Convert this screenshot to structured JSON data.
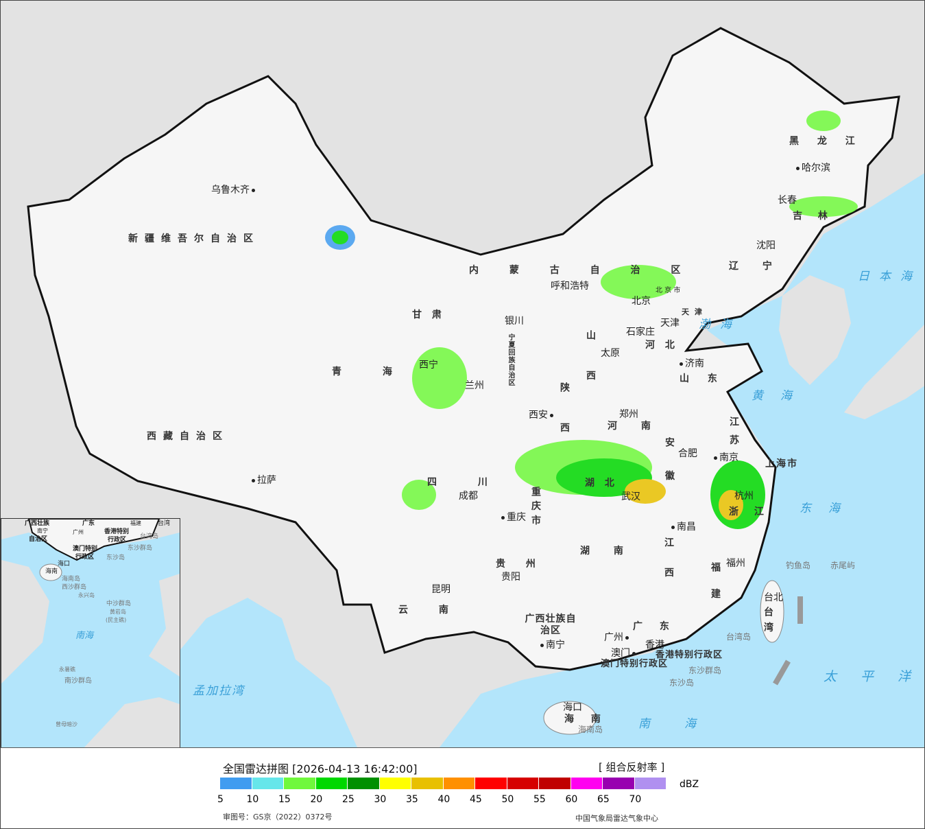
{
  "map": {
    "provinces": [
      "新疆维吾尔自治区",
      "西藏自治区",
      "青 海",
      "甘 肃",
      "内 蒙 古 自 治 区",
      "宁夏回族自治区",
      "陕 西",
      "山 西",
      "河 北",
      "北 京 市",
      "天 津",
      "山 东",
      "河 南",
      "江 苏",
      "安 徽",
      "上海市",
      "浙 江",
      "湖 北",
      "湖 南",
      "江 西",
      "福 建",
      "台 湾",
      "四 川",
      "重 庆 市",
      "贵 州",
      "云 南",
      "广西壮族自治区",
      "广 东",
      "海 南",
      "辽 宁",
      "吉 林",
      "黑 龙 江",
      "香港特别行政区",
      "澳门特别行政区"
    ],
    "cities": [
      "乌鲁木齐",
      "拉萨",
      "西宁",
      "兰州",
      "银川",
      "呼和浩特",
      "北京",
      "天津",
      "石家庄",
      "太原",
      "济南",
      "郑州",
      "西安",
      "成都",
      "重庆",
      "贵阳",
      "昆明",
      "南宁",
      "广州",
      "澳门",
      "香港",
      "南昌",
      "合肥",
      "南京",
      "杭州",
      "福州",
      "台北",
      "沈阳",
      "长春",
      "哈尔滨",
      "海口",
      "武汉"
    ],
    "seas": [
      "日本海",
      "渤海",
      "黄海",
      "东海",
      "太平洋",
      "南海",
      "孟加拉湾"
    ],
    "islands": [
      "钓鱼岛",
      "赤尾屿",
      "台湾岛",
      "东沙群岛",
      "东沙岛",
      "海南岛"
    ]
  },
  "inset": {
    "labels": [
      "广西壮族",
      "自治区",
      "南宁",
      "广东",
      "广州",
      "福建",
      "台湾",
      "香港特别",
      "行政区",
      "澳门特别",
      "行政区",
      "台湾岛",
      "东沙群岛",
      "东沙岛",
      "海口",
      "海南",
      "海南岛",
      "西沙群岛",
      "永兴岛",
      "中沙群岛",
      "黄岩岛",
      "(民主礁)",
      "南海",
      "永暑礁",
      "南沙群岛",
      "曾母暗沙"
    ]
  },
  "legend": {
    "title": "全国雷达拼图 [2026-04-13 16:42:00]",
    "product": "[ 组合反射率 ]",
    "unit": "dBZ",
    "ticks": [
      "5",
      "10",
      "15",
      "20",
      "25",
      "30",
      "35",
      "40",
      "45",
      "50",
      "55",
      "60",
      "65",
      "70"
    ],
    "colors": [
      "#409cf0",
      "#66e6ea",
      "#70f83c",
      "#00d800",
      "#009000",
      "#ffff00",
      "#e8c000",
      "#ff9000",
      "#ff0000",
      "#d60000",
      "#c00000",
      "#ff00f0",
      "#9800b0",
      "#b090f0"
    ],
    "approval": "审图号：GS京（2022）0372号",
    "org": "中国气象局雷达气象中心"
  }
}
